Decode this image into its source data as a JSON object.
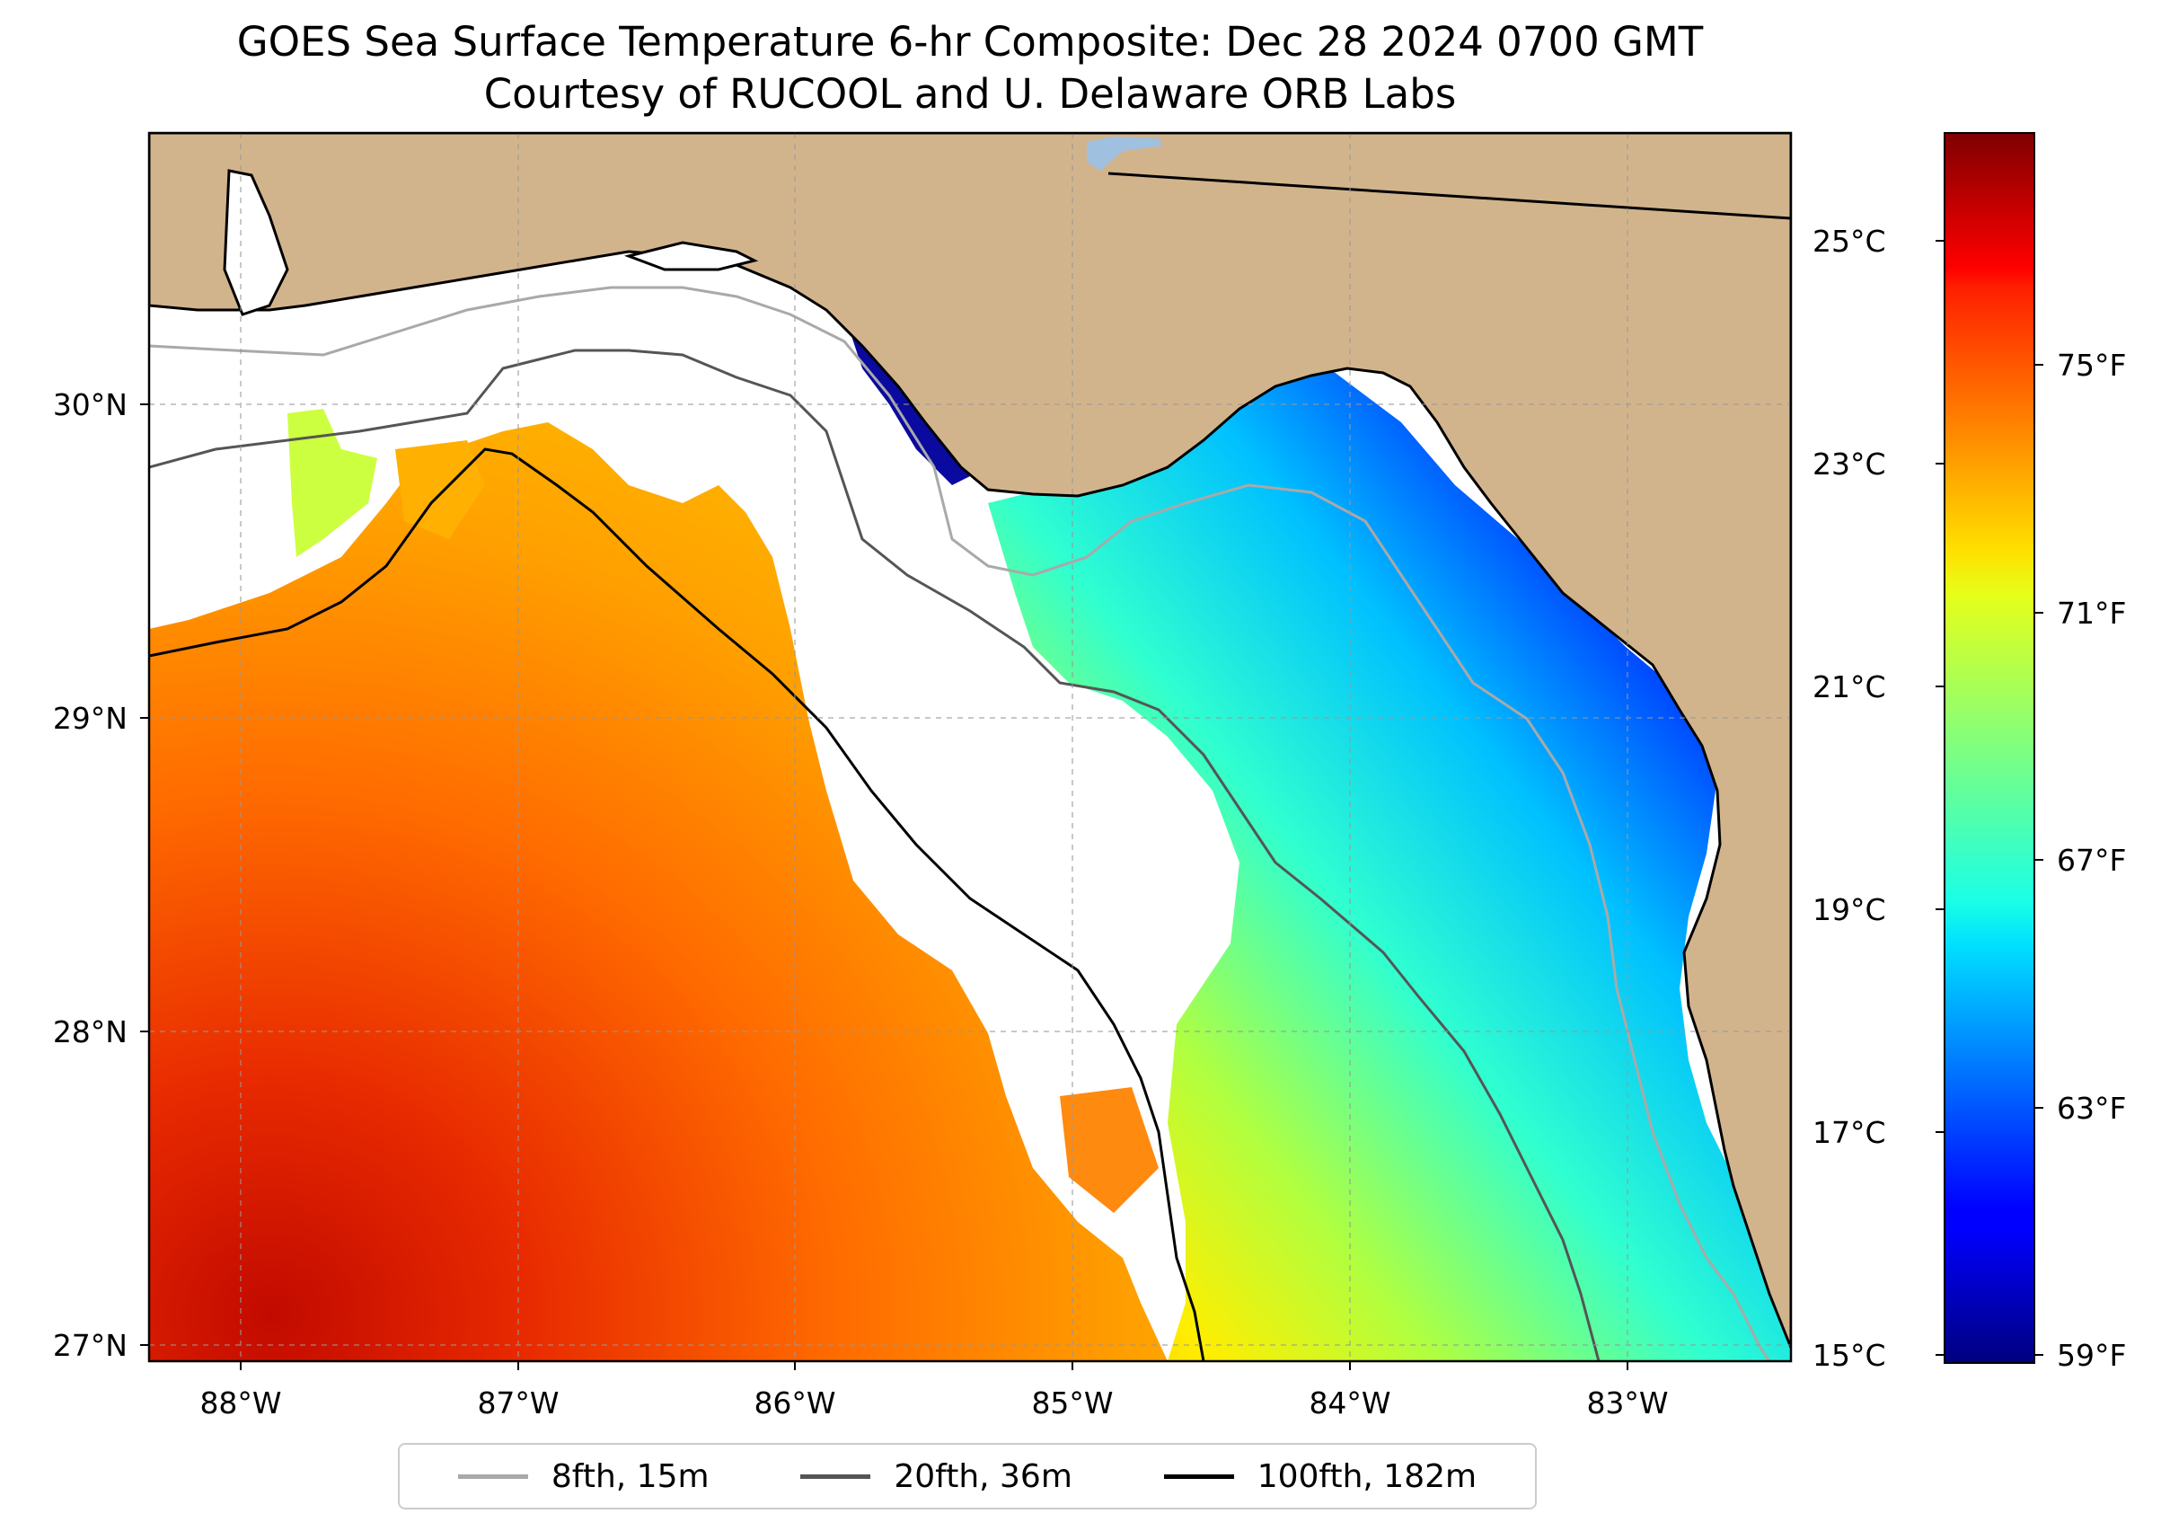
{
  "title": {
    "line1": "GOES Sea Surface Temperature 6-hr Composite: Dec 28 2024 0700 GMT",
    "line2": "Courtesy of RUCOOL and U. Delaware ORB Labs"
  },
  "map": {
    "lon_range": [
      -88.33,
      -82.41
    ],
    "lat_range": [
      26.93,
      30.85
    ],
    "lon_ticks": [
      "88°W",
      "87°W",
      "86°W",
      "85°W",
      "84°W",
      "83°W"
    ],
    "lat_ticks": [
      "27°N",
      "28°N",
      "29°N",
      "30°N"
    ],
    "land_color": "#d2b48c",
    "grid": true
  },
  "colorbar": {
    "colormap": "jet",
    "celsius_ticks": [
      "25°C",
      "23°C",
      "21°C",
      "19°C",
      "17°C",
      "15°C"
    ],
    "fahrenheit_ticks": [
      "75°F",
      "71°F",
      "67°F",
      "63°F",
      "59°F"
    ],
    "range_celsius": [
      15,
      26
    ]
  },
  "legend": [
    {
      "label": "8fth, 15m",
      "color": "#a9a9a9"
    },
    {
      "label": "20fth, 36m",
      "color": "#555555"
    },
    {
      "label": "100fth, 182m",
      "color": "#000000"
    }
  ]
}
